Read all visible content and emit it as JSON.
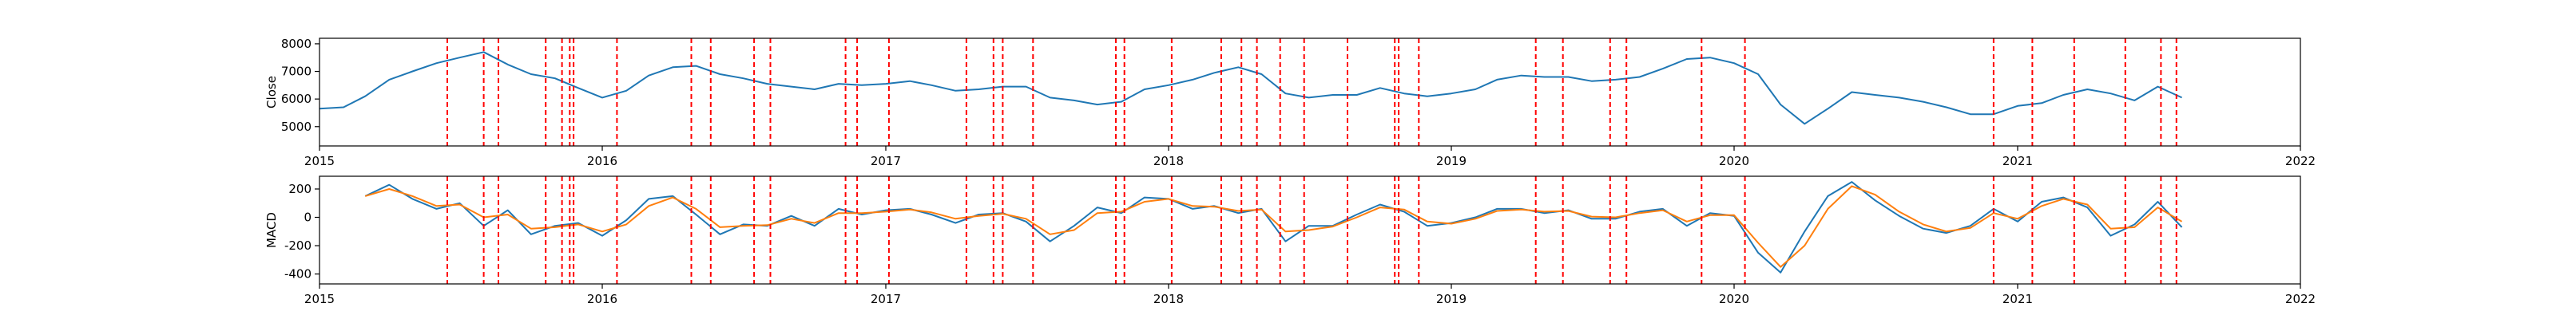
{
  "chart_data": [
    {
      "type": "line",
      "title": "",
      "xlabel": "",
      "ylabel": "Close",
      "xlim": [
        "2015-01-01",
        "2022-01-01"
      ],
      "ylim": [
        4300,
        8200
      ],
      "x_ticks": [
        "2015",
        "2016",
        "2017",
        "2018",
        "2019",
        "2020",
        "2021",
        "2022"
      ],
      "y_ticks": [
        5000,
        6000,
        7000,
        8000
      ],
      "grid": false,
      "series": [
        {
          "name": "",
          "color": "#1f77b4",
          "x": [
            "2015-01-01",
            "2015-02-01",
            "2015-03-01",
            "2015-04-01",
            "2015-05-01",
            "2015-06-01",
            "2015-07-01",
            "2015-08-01",
            "2015-09-01",
            "2015-10-01",
            "2015-11-01",
            "2015-12-01",
            "2016-01-01",
            "2016-02-01",
            "2016-03-01",
            "2016-04-01",
            "2016-05-01",
            "2016-06-01",
            "2016-07-01",
            "2016-08-01",
            "2016-09-01",
            "2016-10-01",
            "2016-11-01",
            "2016-12-01",
            "2017-01-01",
            "2017-02-01",
            "2017-03-01",
            "2017-04-01",
            "2017-05-01",
            "2017-06-01",
            "2017-07-01",
            "2017-08-01",
            "2017-09-01",
            "2017-10-01",
            "2017-11-01",
            "2017-12-01",
            "2018-01-01",
            "2018-02-01",
            "2018-03-01",
            "2018-04-01",
            "2018-05-01",
            "2018-06-01",
            "2018-07-01",
            "2018-08-01",
            "2018-09-01",
            "2018-10-01",
            "2018-11-01",
            "2018-12-01",
            "2019-01-01",
            "2019-02-01",
            "2019-03-01",
            "2019-04-01",
            "2019-05-01",
            "2019-06-01",
            "2019-07-01",
            "2019-08-01",
            "2019-09-01",
            "2019-10-01",
            "2019-11-01",
            "2019-12-01",
            "2020-01-01",
            "2020-02-01",
            "2020-03-01",
            "2020-04-01",
            "2020-05-01",
            "2020-06-01",
            "2020-07-01",
            "2020-08-01",
            "2020-09-01",
            "2020-10-01",
            "2020-11-01",
            "2020-12-01",
            "2021-01-01",
            "2021-02-01",
            "2021-03-01",
            "2021-04-01",
            "2021-05-01",
            "2021-06-01",
            "2021-07-01",
            "2021-08-01"
          ],
          "y": [
            5650,
            5700,
            6100,
            6700,
            7000,
            7300,
            7500,
            7700,
            7250,
            6900,
            6750,
            6400,
            6050,
            6300,
            6850,
            7150,
            7200,
            6900,
            6750,
            6550,
            6450,
            6350,
            6550,
            6500,
            6550,
            6650,
            6500,
            6300,
            6350,
            6450,
            6450,
            6050,
            5950,
            5800,
            5900,
            6350,
            6500,
            6700,
            6950,
            7150,
            6900,
            6200,
            6050,
            6150,
            6150,
            6400,
            6200,
            6100,
            6200,
            6350,
            6700,
            6850,
            6800,
            6800,
            6650,
            6700,
            6800,
            7100,
            7450,
            7500,
            7300,
            6900,
            5800,
            5100,
            5650,
            6250,
            6150,
            6050,
            5900,
            5700,
            5450,
            5450,
            5750,
            5850,
            6150,
            6350,
            6200,
            5950,
            6450,
            6050
          ]
        }
      ],
      "event_lines": [
        "2015-06-15",
        "2015-08-01",
        "2015-08-20",
        "2015-10-20",
        "2015-11-10",
        "2015-11-20",
        "2015-11-25",
        "2016-01-20",
        "2016-04-25",
        "2016-05-20",
        "2016-07-15",
        "2016-08-05",
        "2016-11-10",
        "2016-11-25",
        "2017-01-05",
        "2017-04-15",
        "2017-05-20",
        "2017-06-01",
        "2017-07-10",
        "2017-10-25",
        "2017-11-05",
        "2018-01-05",
        "2018-03-10",
        "2018-04-05",
        "2018-04-25",
        "2018-05-25",
        "2018-06-25",
        "2018-08-20",
        "2018-10-20",
        "2018-10-25",
        "2018-11-20",
        "2019-04-20",
        "2019-05-25",
        "2019-07-25",
        "2019-08-15",
        "2019-11-20",
        "2020-01-15",
        "2020-12-01",
        "2021-01-20",
        "2021-03-15",
        "2021-05-20",
        "2021-07-05",
        "2021-07-25"
      ],
      "event_line_color": "#ff0000"
    },
    {
      "type": "line",
      "title": "",
      "xlabel": "",
      "ylabel": "MACD",
      "xlim": [
        "2015-01-01",
        "2022-01-01"
      ],
      "ylim": [
        -470,
        290
      ],
      "x_ticks": [
        "2015",
        "2016",
        "2017",
        "2018",
        "2019",
        "2020",
        "2021",
        "2022"
      ],
      "y_ticks": [
        -400,
        -200,
        0,
        200
      ],
      "grid": false,
      "series": [
        {
          "name": "",
          "color": "#1f77b4",
          "x": [
            "2015-03-01",
            "2015-04-01",
            "2015-05-01",
            "2015-06-01",
            "2015-07-01",
            "2015-08-01",
            "2015-09-01",
            "2015-10-01",
            "2015-11-01",
            "2015-12-01",
            "2016-01-01",
            "2016-02-01",
            "2016-03-01",
            "2016-04-01",
            "2016-05-01",
            "2016-06-01",
            "2016-07-01",
            "2016-08-01",
            "2016-09-01",
            "2016-10-01",
            "2016-11-01",
            "2016-12-01",
            "2017-01-01",
            "2017-02-01",
            "2017-03-01",
            "2017-04-01",
            "2017-05-01",
            "2017-06-01",
            "2017-07-01",
            "2017-08-01",
            "2017-09-01",
            "2017-10-01",
            "2017-11-01",
            "2017-12-01",
            "2018-01-01",
            "2018-02-01",
            "2018-03-01",
            "2018-04-01",
            "2018-05-01",
            "2018-06-01",
            "2018-07-01",
            "2018-08-01",
            "2018-09-01",
            "2018-10-01",
            "2018-11-01",
            "2018-12-01",
            "2019-01-01",
            "2019-02-01",
            "2019-03-01",
            "2019-04-01",
            "2019-05-01",
            "2019-06-01",
            "2019-07-01",
            "2019-08-01",
            "2019-09-01",
            "2019-10-01",
            "2019-11-01",
            "2019-12-01",
            "2020-01-01",
            "2020-02-01",
            "2020-03-01",
            "2020-04-01",
            "2020-05-01",
            "2020-06-01",
            "2020-07-01",
            "2020-08-01",
            "2020-09-01",
            "2020-10-01",
            "2020-11-01",
            "2020-12-01",
            "2021-01-01",
            "2021-02-01",
            "2021-03-01",
            "2021-04-01",
            "2021-05-01",
            "2021-06-01",
            "2021-07-01",
            "2021-08-01"
          ],
          "y": [
            150,
            230,
            130,
            60,
            100,
            -60,
            50,
            -120,
            -60,
            -40,
            -130,
            -20,
            130,
            150,
            20,
            -120,
            -50,
            -60,
            10,
            -60,
            60,
            20,
            50,
            60,
            20,
            -40,
            20,
            30,
            -30,
            -170,
            -60,
            70,
            30,
            140,
            130,
            60,
            80,
            30,
            60,
            -170,
            -60,
            -60,
            20,
            90,
            40,
            -60,
            -40,
            0,
            60,
            60,
            30,
            50,
            -10,
            -10,
            40,
            60,
            -60,
            30,
            10,
            -250,
            -390,
            -100,
            150,
            250,
            120,
            10,
            -80,
            -110,
            -60,
            60,
            -30,
            110,
            140,
            70,
            -130,
            -50,
            110,
            -70
          ]
        },
        {
          "name": "",
          "color": "#ff7f0e",
          "x": [
            "2015-03-01",
            "2015-04-01",
            "2015-05-01",
            "2015-06-01",
            "2015-07-01",
            "2015-08-01",
            "2015-09-01",
            "2015-10-01",
            "2015-11-01",
            "2015-12-01",
            "2016-01-01",
            "2016-02-01",
            "2016-03-01",
            "2016-04-01",
            "2016-05-01",
            "2016-06-01",
            "2016-07-01",
            "2016-08-01",
            "2016-09-01",
            "2016-10-01",
            "2016-11-01",
            "2016-12-01",
            "2017-01-01",
            "2017-02-01",
            "2017-03-01",
            "2017-04-01",
            "2017-05-01",
            "2017-06-01",
            "2017-07-01",
            "2017-08-01",
            "2017-09-01",
            "2017-10-01",
            "2017-11-01",
            "2017-12-01",
            "2018-01-01",
            "2018-02-01",
            "2018-03-01",
            "2018-04-01",
            "2018-05-01",
            "2018-06-01",
            "2018-07-01",
            "2018-08-01",
            "2018-09-01",
            "2018-10-01",
            "2018-11-01",
            "2018-12-01",
            "2019-01-01",
            "2019-02-01",
            "2019-03-01",
            "2019-04-01",
            "2019-05-01",
            "2019-06-01",
            "2019-07-01",
            "2019-08-01",
            "2019-09-01",
            "2019-10-01",
            "2019-11-01",
            "2019-12-01",
            "2020-01-01",
            "2020-02-01",
            "2020-03-01",
            "2020-04-01",
            "2020-05-01",
            "2020-06-01",
            "2020-07-01",
            "2020-08-01",
            "2020-09-01",
            "2020-10-01",
            "2020-11-01",
            "2020-12-01",
            "2021-01-01",
            "2021-02-01",
            "2021-03-01",
            "2021-04-01",
            "2021-05-01",
            "2021-06-01",
            "2021-07-01",
            "2021-08-01"
          ],
          "y": [
            150,
            200,
            150,
            80,
            90,
            0,
            20,
            -80,
            -70,
            -50,
            -100,
            -50,
            80,
            140,
            60,
            -70,
            -60,
            -55,
            -10,
            -40,
            30,
            30,
            40,
            55,
            35,
            -10,
            10,
            25,
            -10,
            -120,
            -90,
            30,
            40,
            110,
            130,
            80,
            75,
            45,
            55,
            -100,
            -90,
            -65,
            0,
            70,
            55,
            -30,
            -45,
            -10,
            45,
            55,
            40,
            45,
            5,
            0,
            30,
            50,
            -30,
            15,
            15,
            -180,
            -350,
            -200,
            60,
            220,
            160,
            40,
            -50,
            -100,
            -75,
            30,
            -10,
            80,
            130,
            90,
            -80,
            -70,
            70,
            -30
          ]
        }
      ],
      "event_lines": [
        "2015-06-15",
        "2015-08-01",
        "2015-08-20",
        "2015-10-20",
        "2015-11-10",
        "2015-11-20",
        "2015-11-25",
        "2016-01-20",
        "2016-04-25",
        "2016-05-20",
        "2016-07-15",
        "2016-08-05",
        "2016-11-10",
        "2016-11-25",
        "2017-01-05",
        "2017-04-15",
        "2017-05-20",
        "2017-06-01",
        "2017-07-10",
        "2017-10-25",
        "2017-11-05",
        "2018-01-05",
        "2018-03-10",
        "2018-04-05",
        "2018-04-25",
        "2018-05-25",
        "2018-06-25",
        "2018-08-20",
        "2018-10-20",
        "2018-10-25",
        "2018-11-20",
        "2019-04-20",
        "2019-05-25",
        "2019-07-25",
        "2019-08-15",
        "2019-11-20",
        "2020-01-15",
        "2020-12-01",
        "2021-01-20",
        "2021-03-15",
        "2021-05-20",
        "2021-07-05",
        "2021-07-25"
      ],
      "event_line_color": "#ff0000"
    }
  ]
}
